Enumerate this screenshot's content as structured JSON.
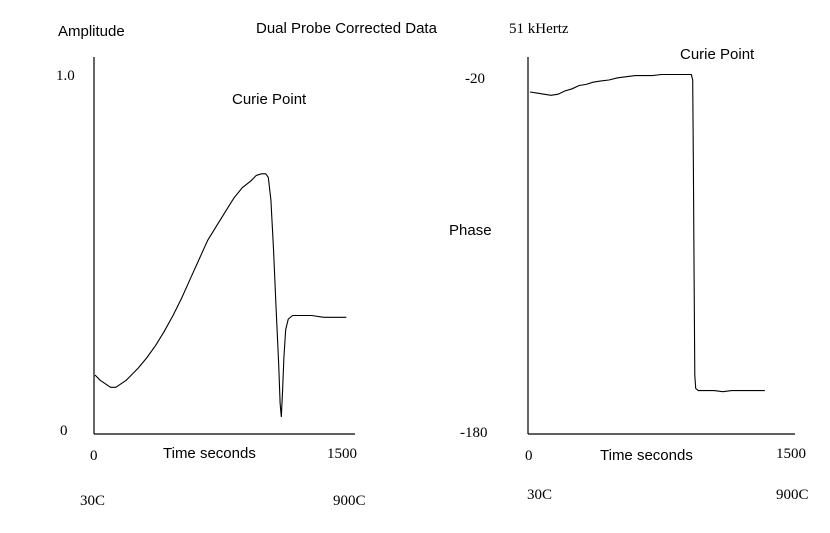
{
  "figure": {
    "title": "Dual Probe Corrected Data",
    "frequency": "51 kHertz"
  },
  "chart_data": [
    {
      "type": "line",
      "ylabel": "Amplitude",
      "xlabel": "Time seconds",
      "annotation": "Curie Point",
      "x_tick_labels": [
        "0",
        "1500"
      ],
      "y_tick_labels": [
        "0",
        "1.0"
      ],
      "temp_labels": [
        "30C",
        "900C"
      ],
      "xlim": [
        0,
        1500
      ],
      "ylim": [
        0,
        1.0
      ],
      "grid": false,
      "series": [
        {
          "points": [
            [
              0,
              0.14
            ],
            [
              30,
              0.125
            ],
            [
              60,
              0.115
            ],
            [
              90,
              0.105
            ],
            [
              120,
              0.105
            ],
            [
              150,
              0.115
            ],
            [
              180,
              0.125
            ],
            [
              210,
              0.14
            ],
            [
              250,
              0.16
            ],
            [
              300,
              0.19
            ],
            [
              350,
              0.225
            ],
            [
              400,
              0.265
            ],
            [
              450,
              0.31
            ],
            [
              500,
              0.36
            ],
            [
              550,
              0.415
            ],
            [
              600,
              0.47
            ],
            [
              650,
              0.525
            ],
            [
              700,
              0.565
            ],
            [
              750,
              0.605
            ],
            [
              800,
              0.645
            ],
            [
              850,
              0.675
            ],
            [
              900,
              0.695
            ],
            [
              930,
              0.71
            ],
            [
              960,
              0.715
            ],
            [
              985,
              0.715
            ],
            [
              1000,
              0.705
            ],
            [
              1015,
              0.64
            ],
            [
              1030,
              0.5
            ],
            [
              1045,
              0.33
            ],
            [
              1060,
              0.17
            ],
            [
              1068,
              0.06
            ],
            [
              1075,
              0.02
            ],
            [
              1082,
              0.09
            ],
            [
              1090,
              0.19
            ],
            [
              1100,
              0.27
            ],
            [
              1115,
              0.3
            ],
            [
              1140,
              0.31
            ],
            [
              1180,
              0.31
            ],
            [
              1250,
              0.31
            ],
            [
              1320,
              0.305
            ],
            [
              1400,
              0.305
            ],
            [
              1450,
              0.305
            ]
          ]
        }
      ]
    },
    {
      "type": "line",
      "ylabel": "Phase",
      "xlabel": "Time seconds",
      "annotation": "Curie Point",
      "x_tick_labels": [
        "0",
        "1500"
      ],
      "y_tick_labels": [
        "-20",
        "-180"
      ],
      "temp_labels": [
        "30C",
        "900C"
      ],
      "xlim": [
        0,
        1500
      ],
      "ylim": [
        -180,
        -20
      ],
      "grid": false,
      "series": [
        {
          "points": [
            [
              0,
              -25.5
            ],
            [
              40,
              -26
            ],
            [
              80,
              -26.5
            ],
            [
              120,
              -27
            ],
            [
              160,
              -26.5
            ],
            [
              200,
              -25
            ],
            [
              240,
              -24
            ],
            [
              280,
              -22.5
            ],
            [
              320,
              -22
            ],
            [
              360,
              -21
            ],
            [
              400,
              -20.5
            ],
            [
              450,
              -20
            ],
            [
              500,
              -19
            ],
            [
              550,
              -18.5
            ],
            [
              600,
              -18
            ],
            [
              650,
              -18
            ],
            [
              700,
              -18
            ],
            [
              750,
              -17.5
            ],
            [
              800,
              -17.5
            ],
            [
              860,
              -17.5
            ],
            [
              900,
              -17.5
            ],
            [
              920,
              -17.5
            ],
            [
              928,
              -20
            ],
            [
              932,
              -60
            ],
            [
              936,
              -110
            ],
            [
              940,
              -155
            ],
            [
              945,
              -161
            ],
            [
              960,
              -162
            ],
            [
              1000,
              -162
            ],
            [
              1050,
              -162
            ],
            [
              1100,
              -162.5
            ],
            [
              1150,
              -162
            ],
            [
              1200,
              -162
            ],
            [
              1250,
              -162
            ],
            [
              1300,
              -162
            ],
            [
              1340,
              -162
            ]
          ]
        }
      ]
    }
  ]
}
